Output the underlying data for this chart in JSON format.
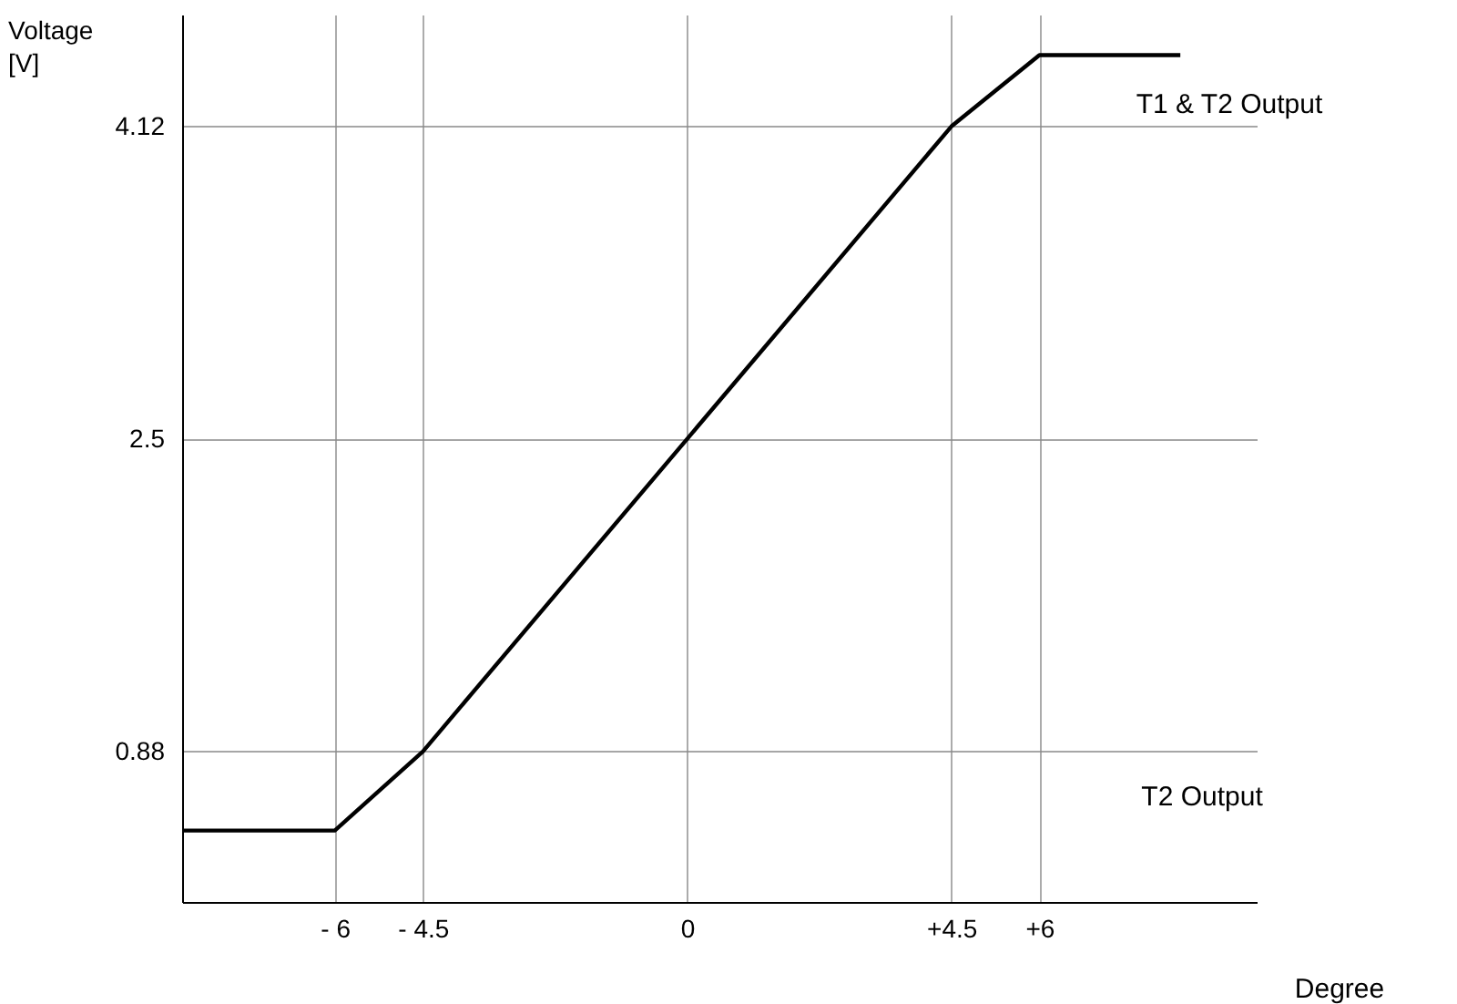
{
  "chart_data": {
    "type": "line",
    "xlabel": "Degree",
    "ylabel": "Voltage [V]",
    "series": [
      {
        "color": "#000000",
        "x": [
          -8.6,
          -6,
          -4.5,
          0,
          4.5,
          6,
          8.4
        ],
        "values": [
          0.47,
          0.47,
          0.88,
          2.5,
          4.12,
          4.49,
          4.49
        ]
      }
    ],
    "xlim": [
      -8.6,
      9.7
    ],
    "ylim": [
      0.1,
      4.7
    ],
    "xticks": [
      {
        "value": -6,
        "label": "- 6"
      },
      {
        "value": -4.5,
        "label": "- 4.5"
      },
      0,
      {
        "value": 4.5,
        "label": "+4.5"
      },
      {
        "value": 6,
        "label": "+6"
      }
    ],
    "yticks": [
      0.88,
      2.5,
      4.12
    ],
    "grid": true,
    "marker": "none",
    "line_style": "solid",
    "annotations": [
      "T1 & T2 Output",
      "T2 Output"
    ]
  }
}
